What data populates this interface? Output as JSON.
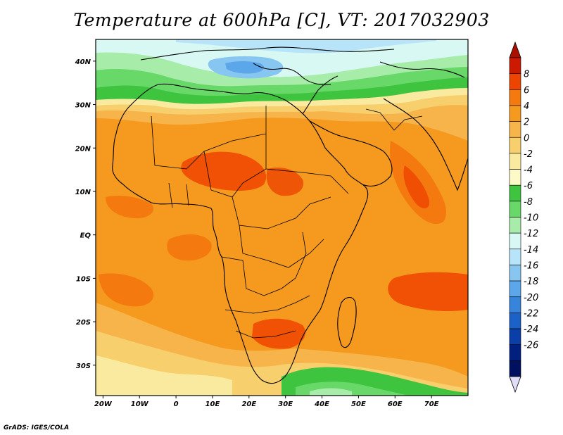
{
  "title": "Temperature at 600hPa [C], VT: 2017032903",
  "credit": "GrADS: IGES/COLA",
  "map": {
    "lon_range": [
      -22,
      80
    ],
    "lat_range": [
      -37,
      45
    ],
    "x_ticks": [
      {
        "lon": -20,
        "label": "20W"
      },
      {
        "lon": -10,
        "label": "10W"
      },
      {
        "lon": 0,
        "label": "0"
      },
      {
        "lon": 10,
        "label": "10E"
      },
      {
        "lon": 20,
        "label": "20E"
      },
      {
        "lon": 30,
        "label": "30E"
      },
      {
        "lon": 40,
        "label": "40E"
      },
      {
        "lon": 50,
        "label": "50E"
      },
      {
        "lon": 60,
        "label": "60E"
      },
      {
        "lon": 70,
        "label": "70E"
      }
    ],
    "y_ticks": [
      {
        "lat": 40,
        "label": "40N"
      },
      {
        "lat": 30,
        "label": "30N"
      },
      {
        "lat": 20,
        "label": "20N"
      },
      {
        "lat": 10,
        "label": "10N"
      },
      {
        "lat": 0,
        "label": "EQ"
      },
      {
        "lat": -10,
        "label": "10S"
      },
      {
        "lat": -20,
        "label": "20S"
      },
      {
        "lat": -30,
        "label": "30S"
      }
    ]
  },
  "colorbar": {
    "labels": [
      "8",
      "6",
      "4",
      "2",
      "0",
      "-2",
      "-4",
      "-6",
      "-8",
      "-10",
      "-12",
      "-14",
      "-16",
      "-18",
      "-20",
      "-22",
      "-24",
      "-26"
    ],
    "colors": [
      "#cc1a00",
      "#ee4400",
      "#f47a10",
      "#f59a1e",
      "#f7b44a",
      "#f7cf6c",
      "#faeaa0",
      "#fdfac8",
      "#3ec43e",
      "#68d868",
      "#a8ecaa",
      "#d8f8f4",
      "#b8e4fa",
      "#88c6f2",
      "#5ca6ea",
      "#3684dc",
      "#1a62c8",
      "#0a3ea8",
      "#002080",
      "#001060"
    ],
    "top_arrow_color": "#aa1000",
    "bottom_arrow_color": "#e0ddf6"
  }
}
